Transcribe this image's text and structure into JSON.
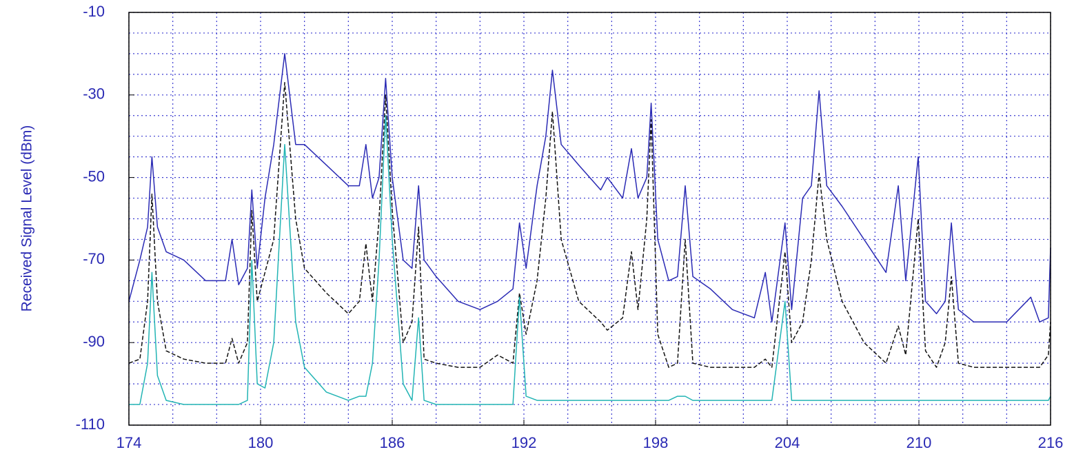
{
  "chart_data": {
    "type": "line",
    "ylabel": "Received Signal Level (dBm)",
    "xlim": [
      174,
      216
    ],
    "ylim": [
      -110,
      -10
    ],
    "xticks": [
      174,
      180,
      186,
      192,
      198,
      204,
      210,
      216
    ],
    "yticks": [
      -10,
      -30,
      -50,
      -70,
      -90,
      -110
    ],
    "grid": true,
    "xgrid": [
      174,
      176,
      178,
      180,
      182,
      184,
      186,
      188,
      190,
      192,
      194,
      196,
      198,
      200,
      202,
      204,
      206,
      208,
      210,
      212,
      214,
      216
    ],
    "ygrid": [
      -110,
      -105,
      -100,
      -95,
      -90,
      -85,
      -80,
      -75,
      -70,
      -65,
      -60,
      -55,
      -50,
      -45,
      -40,
      -35,
      -30,
      -25,
      -20,
      -15,
      -10
    ],
    "x": [
      174.0,
      174.5,
      174.85,
      175.05,
      175.3,
      175.7,
      176.5,
      177.5,
      178.4,
      178.7,
      179.0,
      179.4,
      179.6,
      179.85,
      180.2,
      180.6,
      181.1,
      181.6,
      182.0,
      183.0,
      184.0,
      184.5,
      184.8,
      185.1,
      185.4,
      185.7,
      186.0,
      186.5,
      186.9,
      187.2,
      187.45,
      188.0,
      189.0,
      190.0,
      190.8,
      191.5,
      191.8,
      192.1,
      192.6,
      193.0,
      193.3,
      193.7,
      194.5,
      195.5,
      195.8,
      196.5,
      196.9,
      197.2,
      197.6,
      197.8,
      198.1,
      198.6,
      199.0,
      199.35,
      199.7,
      200.5,
      201.5,
      202.5,
      203.0,
      203.3,
      203.9,
      204.2,
      204.7,
      205.1,
      205.45,
      205.8,
      206.5,
      207.5,
      208.5,
      209.06,
      209.4,
      209.97,
      210.3,
      210.8,
      211.2,
      211.48,
      211.8,
      212.5,
      214.0,
      215.1,
      215.5,
      215.9,
      216.0
    ],
    "series": [
      {
        "color": "#2a2ab4",
        "dash": false,
        "values": [
          -80,
          -70,
          -62,
          -45,
          -62,
          -68,
          -70,
          -75,
          -75,
          -65,
          -76,
          -72,
          -53,
          -72,
          -55,
          -42,
          -20,
          -42,
          -42,
          -47,
          -52,
          -52,
          -42,
          -55,
          -50,
          -26,
          -50,
          -70,
          -72,
          -52,
          -70,
          -74,
          -80,
          -82,
          -80,
          -77,
          -61,
          -72,
          -52,
          -40,
          -24,
          -42,
          -47,
          -53,
          -50,
          -55,
          -43,
          -55,
          -50,
          -32,
          -65,
          -75,
          -74,
          -52,
          -74,
          -77,
          -82,
          -84,
          -73,
          -85,
          -61,
          -82,
          -55,
          -52,
          -29,
          -52,
          -57,
          -65,
          -73,
          -52,
          -75,
          -45,
          -80,
          -83,
          -80,
          -61,
          -82,
          -85,
          -85,
          -79,
          -85,
          -84,
          -67
        ]
      },
      {
        "color": "#111111",
        "dash": true,
        "values": [
          -95,
          -94,
          -80,
          -54,
          -80,
          -92,
          -94,
          -95,
          -95,
          -89,
          -95,
          -90,
          -58,
          -80,
          -73,
          -65,
          -27,
          -60,
          -72,
          -78,
          -83,
          -80,
          -66,
          -80,
          -60,
          -30,
          -58,
          -90,
          -85,
          -62,
          -94,
          -95,
          -96,
          -96,
          -93,
          -95,
          -78,
          -88,
          -75,
          -55,
          -34,
          -65,
          -80,
          -85,
          -87,
          -84,
          -68,
          -82,
          -60,
          -36,
          -88,
          -96,
          -95,
          -65,
          -95,
          -96,
          -96,
          -96,
          -94,
          -96,
          -68,
          -90,
          -85,
          -70,
          -49,
          -65,
          -80,
          -90,
          -95,
          -86,
          -93,
          -60,
          -92,
          -96,
          -90,
          -74,
          -95,
          -96,
          -96,
          -96,
          -96,
          -93,
          -85
        ]
      },
      {
        "color": "#22b4b4",
        "dash": false,
        "values": [
          -105,
          -105,
          -95,
          -73,
          -98,
          -104,
          -105,
          -105,
          -105,
          -105,
          -105,
          -104,
          -70,
          -100,
          -101,
          -90,
          -42,
          -85,
          -96,
          -102,
          -104,
          -103,
          -103,
          -95,
          -70,
          -35,
          -65,
          -100,
          -104,
          -84,
          -104,
          -105,
          -105,
          -105,
          -105,
          -105,
          -79,
          -103,
          -104,
          -104,
          -104,
          -104,
          -104,
          -104,
          -104,
          -104,
          -104,
          -104,
          -104,
          -104,
          -104,
          -104,
          -103,
          -103,
          -104,
          -104,
          -104,
          -104,
          -104,
          -104,
          -80,
          -104,
          -104,
          -104,
          -104,
          -104,
          -104,
          -104,
          -104,
          -104,
          -104,
          -104,
          -104,
          -104,
          -104,
          -104,
          -104,
          -104,
          -104,
          -104,
          -104,
          -104,
          -103
        ]
      }
    ]
  }
}
